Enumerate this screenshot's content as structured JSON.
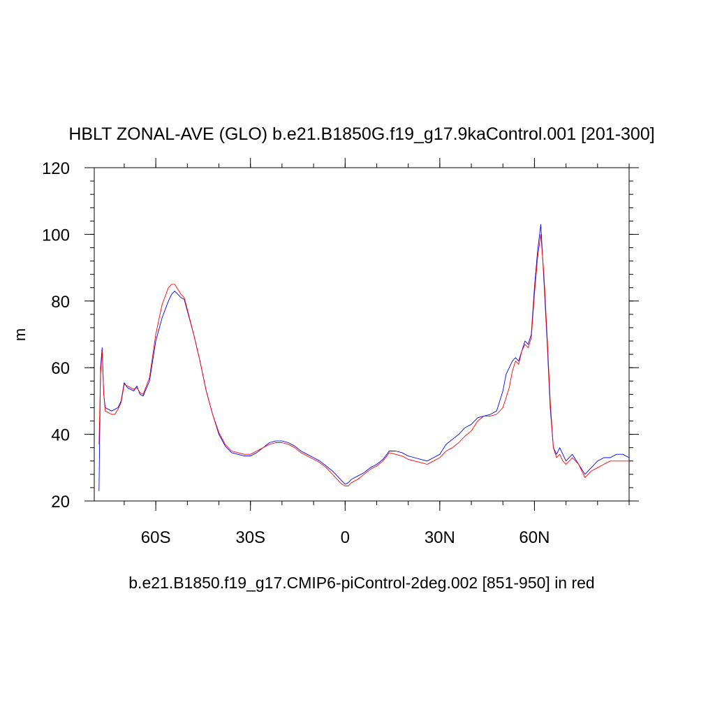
{
  "chart_data": {
    "type": "line",
    "title": "HBLT ZONAL-AVE (GLO) b.e21.B1850G.f19_g17.9kaControl.001 [201-300]",
    "xlabel": "b.e21.B1850.f19_g17.CMIP6-piControl-2deg.002 [851-950] in red",
    "ylabel": "m",
    "xlim": [
      -79.5,
      90
    ],
    "ylim": [
      20,
      120
    ],
    "grid": false,
    "legend": "none",
    "x_ticks": [
      {
        "value": -60,
        "label": "60S"
      },
      {
        "value": -30,
        "label": "30S"
      },
      {
        "value": 0,
        "label": "0"
      },
      {
        "value": 30,
        "label": "30N"
      },
      {
        "value": 60,
        "label": "60N"
      }
    ],
    "y_ticks": [
      {
        "value": 20,
        "label": "20"
      },
      {
        "value": 40,
        "label": "40"
      },
      {
        "value": 60,
        "label": "60"
      },
      {
        "value": 80,
        "label": "80"
      },
      {
        "value": 100,
        "label": "100"
      },
      {
        "value": 120,
        "label": "120"
      }
    ],
    "series": [
      {
        "color": "#0000ff",
        "x": [
          -78,
          -77.5,
          -77,
          -76.5,
          -76,
          -75,
          -74,
          -73,
          -72,
          -71,
          -70,
          -69,
          -68,
          -67,
          -66,
          -65,
          -64,
          -62,
          -60,
          -58,
          -56,
          -55,
          -54,
          -53,
          -52,
          -51,
          -50,
          -48,
          -46,
          -44,
          -42,
          -40,
          -38,
          -36,
          -34,
          -32,
          -30,
          -28,
          -26,
          -24,
          -22,
          -20,
          -18,
          -16,
          -14,
          -12,
          -10,
          -8,
          -6,
          -4,
          -2,
          -1,
          0,
          1,
          2,
          4,
          6,
          8,
          10,
          12,
          14,
          16,
          18,
          20,
          22,
          24,
          26,
          28,
          30,
          32,
          34,
          36,
          38,
          40,
          42,
          44,
          46,
          48,
          50,
          51,
          52,
          53,
          54,
          55,
          56,
          57,
          58,
          59,
          60,
          61,
          62,
          63,
          64,
          65,
          66,
          67,
          68,
          69,
          70,
          72,
          74,
          76,
          78,
          80,
          82,
          84,
          86,
          88,
          90
        ],
        "y": [
          23,
          60,
          66,
          52,
          48,
          47.5,
          47,
          47.5,
          48,
          50,
          55.5,
          54,
          53.5,
          53,
          54.5,
          52,
          51.5,
          56,
          68,
          75,
          80,
          82,
          83,
          82,
          81,
          80.5,
          77,
          70,
          62,
          53,
          46,
          40,
          36.5,
          34.5,
          34,
          33.5,
          33.5,
          34.5,
          36,
          37.5,
          38,
          38,
          37.5,
          36.5,
          35,
          34,
          33,
          32,
          30.5,
          29,
          27,
          26,
          25,
          25.5,
          26.5,
          27.5,
          28.5,
          30,
          31,
          32.5,
          35,
          35,
          34.5,
          33.5,
          33,
          32.5,
          32,
          33,
          34,
          37,
          38.5,
          40,
          42,
          43,
          45,
          45.5,
          46,
          47,
          53,
          58,
          60,
          62,
          63,
          62,
          65,
          68,
          67,
          70,
          84,
          95,
          103,
          86,
          68,
          48,
          36,
          34,
          36,
          34,
          32,
          34,
          31,
          28,
          30,
          32,
          33,
          33,
          34,
          34,
          33
        ]
      },
      {
        "color": "#ff0000",
        "x": [
          -78,
          -77.5,
          -77,
          -76.5,
          -76,
          -75,
          -74,
          -73,
          -72,
          -71,
          -70,
          -69,
          -68,
          -67,
          -66,
          -65,
          -64,
          -62,
          -60,
          -58,
          -56,
          -55,
          -54,
          -53,
          -52,
          -51,
          -50,
          -48,
          -46,
          -44,
          -42,
          -40,
          -38,
          -36,
          -34,
          -32,
          -30,
          -28,
          -26,
          -24,
          -22,
          -20,
          -18,
          -16,
          -14,
          -12,
          -10,
          -8,
          -6,
          -4,
          -2,
          -1,
          0,
          1,
          2,
          4,
          6,
          8,
          10,
          12,
          14,
          16,
          18,
          20,
          22,
          24,
          26,
          28,
          30,
          32,
          34,
          36,
          38,
          40,
          42,
          44,
          46,
          48,
          50,
          51,
          52,
          53,
          54,
          55,
          56,
          57,
          58,
          59,
          60,
          61,
          62,
          63,
          64,
          65,
          66,
          67,
          68,
          69,
          70,
          72,
          74,
          76,
          78,
          80,
          82,
          84,
          86,
          88,
          90
        ],
        "y": [
          37,
          58,
          65,
          52,
          47,
          46.5,
          46,
          46,
          47.5,
          49.5,
          55,
          54.5,
          54,
          53.5,
          54,
          52.5,
          52,
          57,
          70,
          79,
          84,
          85,
          85,
          83.5,
          82,
          81,
          77.5,
          70,
          62,
          53,
          46,
          40.5,
          37,
          35,
          34.5,
          34,
          34,
          35,
          36,
          37,
          37.5,
          37.5,
          37,
          36,
          34.5,
          33.5,
          32.5,
          31.5,
          30,
          28,
          26,
          25,
          24.5,
          24.5,
          25.5,
          26.5,
          28,
          29.5,
          30.5,
          32,
          34.5,
          34,
          33.5,
          32.5,
          32,
          31.5,
          31,
          32,
          33,
          35,
          36,
          37.5,
          39.5,
          41,
          44,
          45.5,
          45.5,
          46,
          48,
          51,
          54,
          59,
          62,
          61,
          65,
          67,
          66,
          69,
          82,
          93,
          100,
          88,
          70,
          50,
          36,
          33,
          34,
          32,
          31,
          33,
          31,
          27,
          29,
          30,
          31,
          32,
          32,
          32,
          32
        ]
      }
    ]
  }
}
